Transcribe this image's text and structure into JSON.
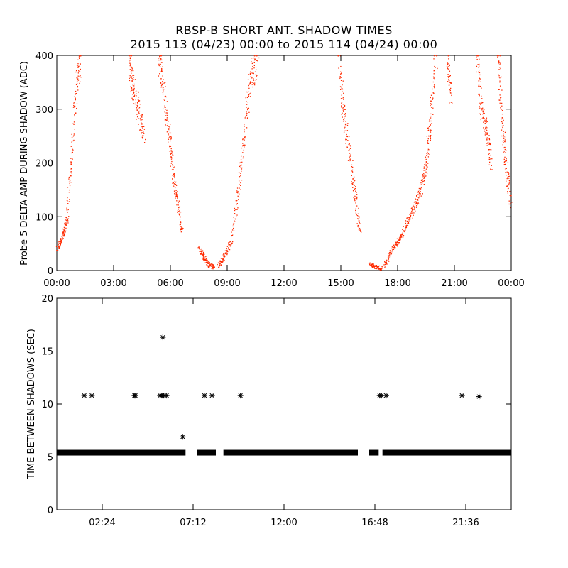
{
  "chart_data": [
    {
      "type": "scatter",
      "title": "RBSP-B SHORT ANT. SHADOW TIMES",
      "subtitle": "2015 113 (04/23) 00:00 to 2015 114 (04/24) 00:00",
      "ylabel": "Probe 5 DELTA AMP DURING SHADOW (ADC)",
      "xlabel": "",
      "xlim": [
        0,
        24
      ],
      "ylim": [
        0,
        400
      ],
      "xticks": [
        0,
        3,
        6,
        9,
        12,
        15,
        18,
        21,
        24
      ],
      "xtick_labels": [
        "00:00",
        "03:00",
        "06:00",
        "09:00",
        "12:00",
        "15:00",
        "18:00",
        "21:00",
        "00:00"
      ],
      "yticks": [
        0,
        100,
        200,
        300,
        400
      ],
      "ytick_labels": [
        "0",
        "100",
        "200",
        "300",
        "400"
      ],
      "color": "#ff2a00",
      "segments": [
        {
          "x": [
            0.0,
            0.25,
            0.5,
            0.75,
            1.0,
            1.2
          ],
          "y": [
            40,
            60,
            95,
            200,
            340,
            395
          ]
        },
        {
          "x": [
            3.85,
            4.0,
            4.3,
            4.6
          ],
          "y": [
            395,
            340,
            300,
            250
          ]
        },
        {
          "x": [
            5.4,
            5.6,
            5.9,
            6.1,
            6.3,
            6.6
          ],
          "y": [
            395,
            340,
            260,
            190,
            140,
            75
          ]
        },
        {
          "x": [
            7.5,
            7.75,
            8.0,
            8.3
          ],
          "y": [
            45,
            25,
            12,
            6
          ]
        },
        {
          "x": [
            8.5,
            8.8,
            9.2,
            9.6,
            9.9,
            10.2,
            10.6
          ],
          "y": [
            8,
            25,
            55,
            150,
            260,
            350,
            400
          ]
        },
        {
          "x": [
            14.9,
            15.1,
            15.4,
            15.7,
            16.0
          ],
          "y": [
            395,
            300,
            230,
            150,
            70
          ]
        },
        {
          "x": [
            16.5,
            16.8,
            17.1
          ],
          "y": [
            12,
            8,
            5
          ]
        },
        {
          "x": [
            17.3,
            17.7,
            18.1,
            18.5,
            18.9,
            19.2,
            19.5,
            19.7,
            20.0
          ],
          "y": [
            10,
            40,
            60,
            90,
            120,
            150,
            200,
            280,
            400
          ]
        },
        {
          "x": [
            20.6,
            20.8
          ],
          "y": [
            395,
            330
          ]
        },
        {
          "x": [
            22.2,
            22.4,
            22.7,
            22.9
          ],
          "y": [
            395,
            300,
            260,
            200
          ]
        },
        {
          "x": [
            23.3,
            23.5,
            23.7,
            23.95
          ],
          "y": [
            395,
            280,
            200,
            120
          ]
        }
      ]
    },
    {
      "type": "scatter",
      "ylabel": "TIME BETWEEN SHADOWS (SEC)",
      "xlabel": "",
      "xlim": [
        0,
        24
      ],
      "ylim": [
        0,
        20
      ],
      "xticks": [
        2.4,
        7.2,
        12.0,
        16.8,
        21.6
      ],
      "xtick_labels": [
        "02:24",
        "07:12",
        "12:00",
        "16:48",
        "21:36"
      ],
      "yticks": [
        0,
        5,
        10,
        15,
        20
      ],
      "ytick_labels": [
        "0",
        "5",
        "10",
        "15",
        "20"
      ],
      "color": "#000000",
      "marker": "*",
      "baseline_value": 5.4,
      "baseline_ranges": [
        [
          0.0,
          6.8
        ],
        [
          7.4,
          8.4
        ],
        [
          8.8,
          15.9
        ],
        [
          16.5,
          17.0
        ],
        [
          17.2,
          24.0
        ]
      ],
      "points": [
        {
          "x": 1.45,
          "y": 10.8
        },
        {
          "x": 1.85,
          "y": 10.8
        },
        {
          "x": 4.1,
          "y": 10.8
        },
        {
          "x": 4.15,
          "y": 10.8
        },
        {
          "x": 5.45,
          "y": 10.8
        },
        {
          "x": 5.55,
          "y": 10.8
        },
        {
          "x": 5.65,
          "y": 10.8
        },
        {
          "x": 5.8,
          "y": 10.8
        },
        {
          "x": 5.6,
          "y": 16.3
        },
        {
          "x": 6.65,
          "y": 6.9
        },
        {
          "x": 7.8,
          "y": 10.8
        },
        {
          "x": 8.2,
          "y": 10.8
        },
        {
          "x": 9.7,
          "y": 10.8
        },
        {
          "x": 17.05,
          "y": 10.8
        },
        {
          "x": 17.15,
          "y": 10.8
        },
        {
          "x": 17.4,
          "y": 10.8
        },
        {
          "x": 21.4,
          "y": 10.8
        },
        {
          "x": 22.3,
          "y": 10.7
        }
      ]
    }
  ]
}
